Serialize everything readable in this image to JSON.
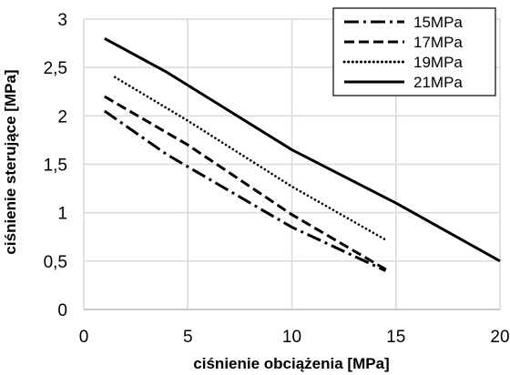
{
  "chart_data": {
    "type": "line",
    "xlabel": "ciśnienie obciążenia [MPa]",
    "ylabel": "ciśnienie sterujące [MPa]",
    "xlim": [
      0,
      20
    ],
    "ylim": [
      0,
      3
    ],
    "xticks": [
      0,
      5,
      10,
      15,
      20
    ],
    "xtick_labels": [
      "0",
      "5",
      "10",
      "15",
      "20"
    ],
    "yticks": [
      0,
      0.5,
      1,
      1.5,
      2,
      2.5,
      3
    ],
    "ytick_labels": [
      "0",
      "0,5",
      "1",
      "1,5",
      "2",
      "2,5",
      "3"
    ],
    "grid": true,
    "legend_position": "top-right",
    "series": [
      {
        "name": "15MPa",
        "style": "dashdot",
        "x": [
          1,
          4,
          8,
          10,
          14.5
        ],
        "y": [
          2.05,
          1.6,
          1.1,
          0.85,
          0.4
        ]
      },
      {
        "name": "17MPa",
        "style": "dashed",
        "x": [
          1,
          5,
          10,
          14.7
        ],
        "y": [
          2.2,
          1.7,
          0.98,
          0.39
        ]
      },
      {
        "name": "19MPa",
        "style": "dotted",
        "x": [
          1.5,
          5,
          10,
          14.5
        ],
        "y": [
          2.4,
          1.95,
          1.27,
          0.72
        ]
      },
      {
        "name": "21MPa",
        "style": "solid",
        "x": [
          1,
          4,
          10,
          15,
          20
        ],
        "y": [
          2.8,
          2.45,
          1.65,
          1.1,
          0.5
        ]
      }
    ]
  }
}
